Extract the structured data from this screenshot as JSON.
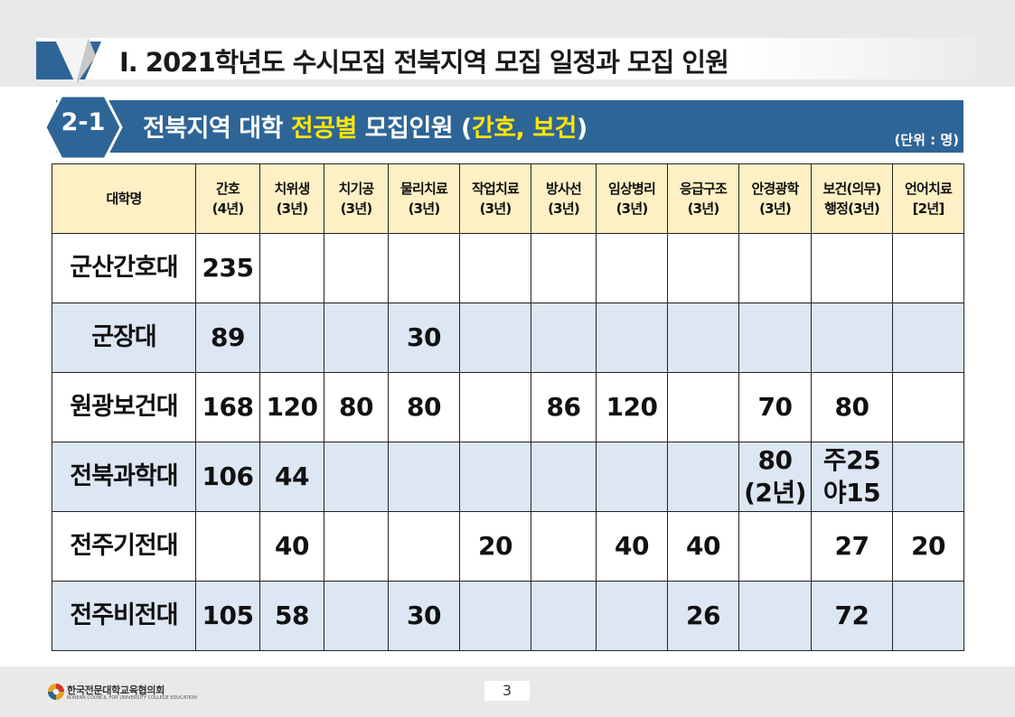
{
  "header": {
    "title": "Ⅰ. 2021학년도 수시모집 전북지역 모집 일정과 모집 인원"
  },
  "section": {
    "badge": "2-1",
    "title_part1": "전북지역  대학 ",
    "title_highlight1": "전공별",
    "title_part2": "  모집인원 (",
    "title_highlight2": "간호, 보건",
    "title_part3": ")",
    "unit_note": "(단위 : 명)"
  },
  "table": {
    "headers": [
      {
        "line1": "대학명",
        "line2": ""
      },
      {
        "line1": "간호",
        "line2": "(4년)"
      },
      {
        "line1": "치위생",
        "line2": "(3년)"
      },
      {
        "line1": "치기공",
        "line2": "(3년)"
      },
      {
        "line1": "물리치료",
        "line2": "(3년)"
      },
      {
        "line1": "작업치료",
        "line2": "(3년)"
      },
      {
        "line1": "방사선",
        "line2": "(3년)"
      },
      {
        "line1": "임상병리",
        "line2": "(3년)"
      },
      {
        "line1": "응급구조",
        "line2": "(3년)"
      },
      {
        "line1": "안경광학",
        "line2": "(3년)"
      },
      {
        "line1": "보건(의무)",
        "line2": "행정(3년)"
      },
      {
        "line1": "언어치료",
        "line2": "[2년]"
      }
    ],
    "rows": [
      {
        "name": "군산간호대",
        "cells": [
          {
            "l1": "235",
            "l2": ""
          },
          {
            "l1": "",
            "l2": ""
          },
          {
            "l1": "",
            "l2": ""
          },
          {
            "l1": "",
            "l2": ""
          },
          {
            "l1": "",
            "l2": ""
          },
          {
            "l1": "",
            "l2": ""
          },
          {
            "l1": "",
            "l2": ""
          },
          {
            "l1": "",
            "l2": ""
          },
          {
            "l1": "",
            "l2": ""
          },
          {
            "l1": "",
            "l2": ""
          },
          {
            "l1": "",
            "l2": ""
          }
        ]
      },
      {
        "name": "군장대",
        "cells": [
          {
            "l1": "89",
            "l2": ""
          },
          {
            "l1": "",
            "l2": ""
          },
          {
            "l1": "",
            "l2": ""
          },
          {
            "l1": "30",
            "l2": ""
          },
          {
            "l1": "",
            "l2": ""
          },
          {
            "l1": "",
            "l2": ""
          },
          {
            "l1": "",
            "l2": ""
          },
          {
            "l1": "",
            "l2": ""
          },
          {
            "l1": "",
            "l2": ""
          },
          {
            "l1": "",
            "l2": ""
          },
          {
            "l1": "",
            "l2": ""
          }
        ]
      },
      {
        "name": "원광보건대",
        "cells": [
          {
            "l1": "168",
            "l2": ""
          },
          {
            "l1": "120",
            "l2": ""
          },
          {
            "l1": "80",
            "l2": ""
          },
          {
            "l1": "80",
            "l2": ""
          },
          {
            "l1": "",
            "l2": ""
          },
          {
            "l1": "86",
            "l2": ""
          },
          {
            "l1": "120",
            "l2": ""
          },
          {
            "l1": "",
            "l2": ""
          },
          {
            "l1": "70",
            "l2": ""
          },
          {
            "l1": "80",
            "l2": ""
          },
          {
            "l1": "",
            "l2": ""
          }
        ]
      },
      {
        "name": "전북과학대",
        "cells": [
          {
            "l1": "106",
            "l2": ""
          },
          {
            "l1": "44",
            "l2": ""
          },
          {
            "l1": "",
            "l2": ""
          },
          {
            "l1": "",
            "l2": ""
          },
          {
            "l1": "",
            "l2": ""
          },
          {
            "l1": "",
            "l2": ""
          },
          {
            "l1": "",
            "l2": ""
          },
          {
            "l1": "",
            "l2": ""
          },
          {
            "l1": "80",
            "l2": "(2년)"
          },
          {
            "l1": "주25",
            "l2": "야15"
          },
          {
            "l1": "",
            "l2": ""
          }
        ]
      },
      {
        "name": "전주기전대",
        "cells": [
          {
            "l1": "",
            "l2": ""
          },
          {
            "l1": "40",
            "l2": ""
          },
          {
            "l1": "",
            "l2": ""
          },
          {
            "l1": "",
            "l2": ""
          },
          {
            "l1": "20",
            "l2": ""
          },
          {
            "l1": "",
            "l2": ""
          },
          {
            "l1": "40",
            "l2": ""
          },
          {
            "l1": "40",
            "l2": ""
          },
          {
            "l1": "",
            "l2": ""
          },
          {
            "l1": "27",
            "l2": ""
          },
          {
            "l1": "20",
            "l2": ""
          }
        ]
      },
      {
        "name": "전주비전대",
        "cells": [
          {
            "l1": "105",
            "l2": ""
          },
          {
            "l1": "58",
            "l2": ""
          },
          {
            "l1": "",
            "l2": ""
          },
          {
            "l1": "30",
            "l2": ""
          },
          {
            "l1": "",
            "l2": ""
          },
          {
            "l1": "",
            "l2": ""
          },
          {
            "l1": "",
            "l2": ""
          },
          {
            "l1": "26",
            "l2": ""
          },
          {
            "l1": "",
            "l2": ""
          },
          {
            "l1": "72",
            "l2": ""
          },
          {
            "l1": "",
            "l2": ""
          }
        ]
      }
    ]
  },
  "footer": {
    "org_name": "한국전문대학교육협의회",
    "org_name_en": "KOREAN COUNCIL FOR UNIVERSITY COLLEGE EDUCATION",
    "page_number": "3"
  },
  "colors": {
    "section_bar": "#2e6597",
    "highlight": "#ffe600",
    "header_fill": "#fdf0c5",
    "row_alt_fill": "#dde6f3"
  }
}
